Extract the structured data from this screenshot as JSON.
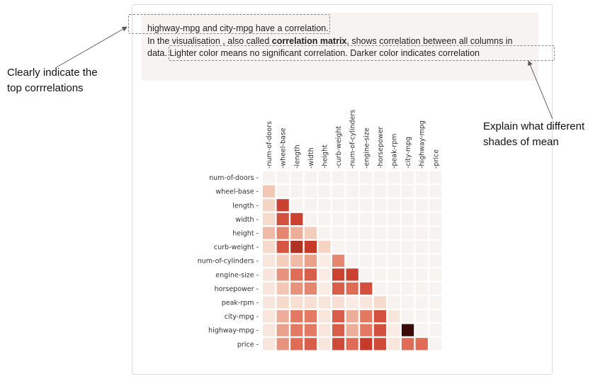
{
  "insight": {
    "line1_a": "highway-mpg",
    "line1_b": " and ",
    "line1_c": "city-mpg",
    "line1_d": " have a correlation.",
    "line2_a": "In the visualisation , also called ",
    "line2_b": "correlation matrix",
    "line2_c": ", shows correlation between all columns in",
    "line3_a": "data. ",
    "line3_b": "Lighter color means no significant correlation. Darker color indicates correlation"
  },
  "annotations": {
    "left": [
      "Clearly indicate the",
      "top corrrelations"
    ],
    "right": [
      "Explain what different",
      "shades of mean"
    ]
  },
  "colors": {
    "cell_bg": "#f7f3f1",
    "scale": [
      "#fbf1ec",
      "#f2c8b4",
      "#e06c55",
      "#c73a2a",
      "#3a0c0c"
    ]
  },
  "chart_data": {
    "type": "heatmap",
    "row_labels": [
      "num-of-doors",
      "wheel-base",
      "length",
      "width",
      "height",
      "curb-weight",
      "num-of-cylinders",
      "engine-size",
      "horsepower",
      "peak-rpm",
      "city-mpg",
      "highway-mpg",
      "price"
    ],
    "col_labels": [
      "num-of-doors",
      "wheel-base",
      "length",
      "width",
      "height",
      "curb-weight",
      "num-of-cylinders",
      "engine-size",
      "horsepower",
      "peak-rpm",
      "city-mpg",
      "highway-mpg",
      "price"
    ],
    "lower_triangle_strength": [
      [],
      [
        0.35
      ],
      [
        0.25,
        0.85
      ],
      [
        0.2,
        0.8,
        0.85
      ],
      [
        0.4,
        0.6,
        0.45,
        0.3
      ],
      [
        0.2,
        0.78,
        0.9,
        0.88,
        0.25
      ],
      [
        0.1,
        0.3,
        0.4,
        0.5,
        0.05,
        0.6
      ],
      [
        0.1,
        0.55,
        0.7,
        0.75,
        0.05,
        0.85,
        0.85
      ],
      [
        0.1,
        0.35,
        0.55,
        0.6,
        0.05,
        0.75,
        0.7,
        0.8
      ],
      [
        0.1,
        0.2,
        0.15,
        0.15,
        0.1,
        0.15,
        0.05,
        0.1,
        0.2
      ],
      [
        0.1,
        0.45,
        0.65,
        0.65,
        0.1,
        0.75,
        0.45,
        0.65,
        0.8,
        0.1
      ],
      [
        0.1,
        0.5,
        0.65,
        0.65,
        0.1,
        0.75,
        0.45,
        0.65,
        0.8,
        0.05,
        1.0
      ],
      [
        0.1,
        0.55,
        0.7,
        0.75,
        0.1,
        0.82,
        0.7,
        0.88,
        0.82,
        0.1,
        0.7,
        0.7
      ]
    ]
  }
}
